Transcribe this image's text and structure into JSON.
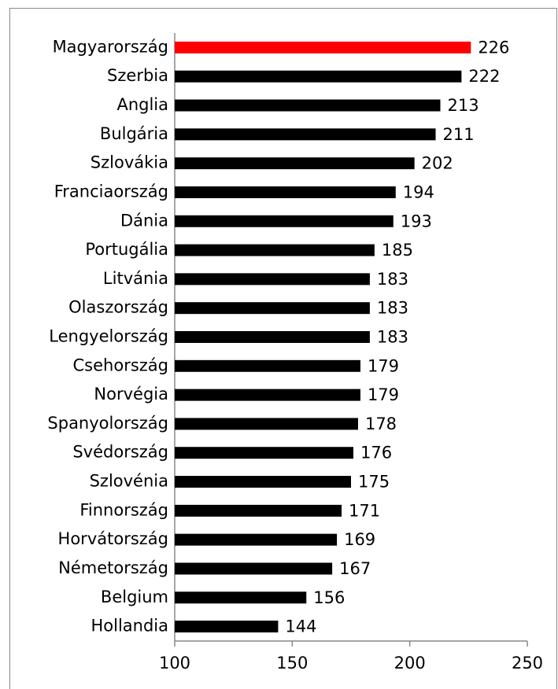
{
  "chart_data": {
    "type": "hbar",
    "categories": [
      "Magyarország",
      "Szerbia",
      "Anglia",
      "Bulgária",
      "Szlovákia",
      "Franciaország",
      "Dánia",
      "Portugália",
      "Litvánia",
      "Olaszország",
      "Lengyelország",
      "Csehország",
      "Norvégia",
      "Spanyolország",
      "Svédország",
      "Szlovénia",
      "Finnország",
      "Horvátország",
      "Németország",
      "Belgium",
      "Hollandia"
    ],
    "values": [
      226,
      222,
      213,
      211,
      202,
      194,
      193,
      185,
      183,
      183,
      183,
      179,
      179,
      178,
      176,
      175,
      171,
      169,
      167,
      156,
      144
    ],
    "colors": [
      "#ff0000",
      "#000000",
      "#000000",
      "#000000",
      "#000000",
      "#000000",
      "#000000",
      "#000000",
      "#000000",
      "#000000",
      "#000000",
      "#000000",
      "#000000",
      "#000000",
      "#000000",
      "#000000",
      "#000000",
      "#000000",
      "#000000",
      "#000000",
      "#000000"
    ],
    "xlim": [
      100,
      250
    ],
    "xticks": [
      100,
      150,
      200,
      250
    ],
    "grid": false
  }
}
